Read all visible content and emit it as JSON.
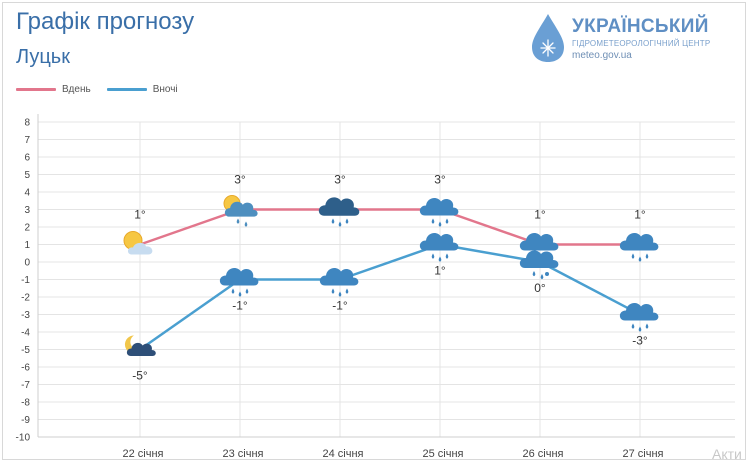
{
  "header": {
    "title": "Графік прогнозу",
    "subtitle": "Луцьк"
  },
  "logo": {
    "brand": "УКРАЇНСЬКИЙ",
    "sub": "ГІДРОМЕТЕОРОЛОГІЧНИЙ ЦЕНТР",
    "url": "meteo.gov.ua"
  },
  "legend": {
    "day": "Вдень",
    "night": "Вночі"
  },
  "watermark": "Акти",
  "colors": {
    "day": "#e2768c",
    "night": "#4a9fd0",
    "grid": "#e4e4e4",
    "text": "#333333",
    "title": "#3a6fa8"
  },
  "chart_data": {
    "type": "line",
    "categories": [
      "22 січня",
      "23 січня",
      "24 січня",
      "25 січня",
      "26 січня",
      "27 січня"
    ],
    "series": [
      {
        "name": "Вдень",
        "values": [
          1,
          3,
          3,
          3,
          1,
          1
        ],
        "labels": [
          "1°",
          "3°",
          "3°",
          "3°",
          "1°",
          "1°"
        ],
        "icons": [
          "sun-cloud",
          "sun-cloud-rain",
          "dark-cloud-rain",
          "cloud-rain",
          "cloud-rain-snow",
          "cloud-rain"
        ]
      },
      {
        "name": "Вночі",
        "values": [
          -5,
          -1,
          -1,
          1,
          0,
          -3
        ],
        "labels": [
          "-5°",
          "-1°",
          "-1°",
          "1°",
          "0°",
          "-3°"
        ],
        "icons": [
          "moon-cloud",
          "cloud-rain",
          "cloud-rain",
          "cloud-rain",
          "cloud-rain-snow",
          "cloud-rain"
        ]
      }
    ],
    "yticks": [
      "8",
      "7",
      "6",
      "5",
      "4",
      "3",
      "2",
      "1",
      "0",
      "-1",
      "-2",
      "-3",
      "-4",
      "-5",
      "-6",
      "-7",
      "-8",
      "-9",
      "-10"
    ],
    "ylim": [
      -10,
      8
    ],
    "grid": true,
    "legend_position": "top-left"
  }
}
